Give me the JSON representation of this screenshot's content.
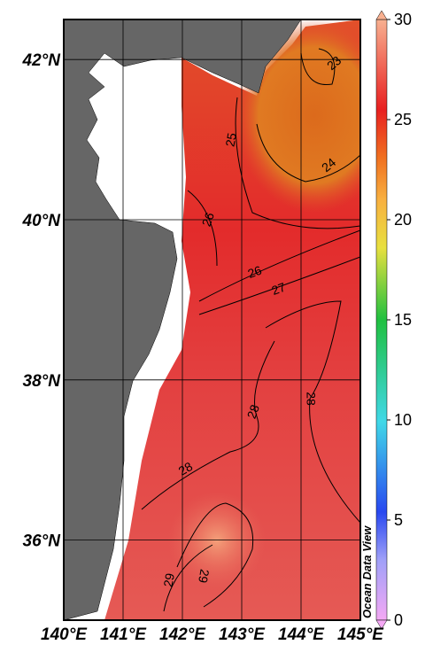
{
  "map": {
    "xlim": [
      140,
      145
    ],
    "ylim": [
      35,
      42.5
    ],
    "xticks": [
      {
        "value": 140,
        "label": "140°E"
      },
      {
        "value": 141,
        "label": "141°E"
      },
      {
        "value": 142,
        "label": "142°E"
      },
      {
        "value": 143,
        "label": "143°E"
      },
      {
        "value": 144,
        "label": "144°E"
      },
      {
        "value": 145,
        "label": "145°E"
      }
    ],
    "yticks": [
      {
        "value": 36,
        "label": "36°N"
      },
      {
        "value": 38,
        "label": "38°N"
      },
      {
        "value": 40,
        "label": "40°N"
      },
      {
        "value": 42,
        "label": "42°N"
      }
    ],
    "colorbar": {
      "lim": [
        0,
        30
      ],
      "ticks": [
        0,
        5,
        10,
        15,
        20,
        25,
        30
      ]
    },
    "contour_labels": [
      23,
      24,
      25,
      26,
      26,
      27,
      28,
      28,
      28,
      29,
      29
    ],
    "watermark": "Ocean Data View"
  }
}
